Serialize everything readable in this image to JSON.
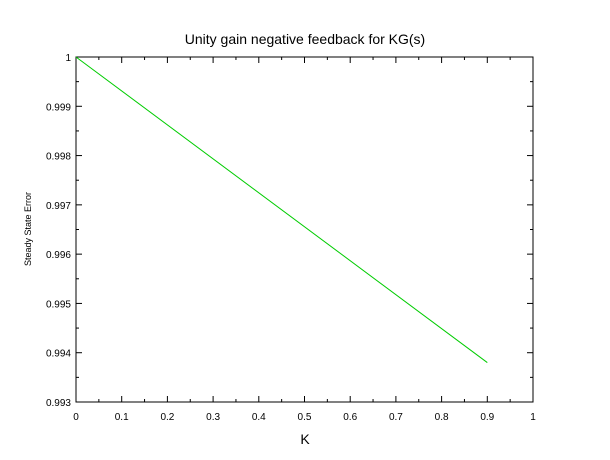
{
  "chart_data": {
    "type": "line",
    "title": "Unity gain negative feedback for KG(s)",
    "xlabel": "K",
    "ylabel": "Steady State Error",
    "xlim": [
      0,
      1
    ],
    "ylim": [
      0.993,
      1
    ],
    "x_ticks": [
      "0",
      "0.1",
      "0.2",
      "0.3",
      "0.4",
      "0.5",
      "0.6",
      "0.7",
      "0.8",
      "0.9",
      "1"
    ],
    "y_ticks": [
      "0.993",
      "0.994",
      "0.995",
      "0.996",
      "0.997",
      "0.998",
      "0.999",
      "1"
    ],
    "grid": false,
    "series": [
      {
        "color": "#00cc00",
        "x": [
          0,
          0.9
        ],
        "y": [
          1.0,
          0.9938
        ]
      }
    ]
  }
}
